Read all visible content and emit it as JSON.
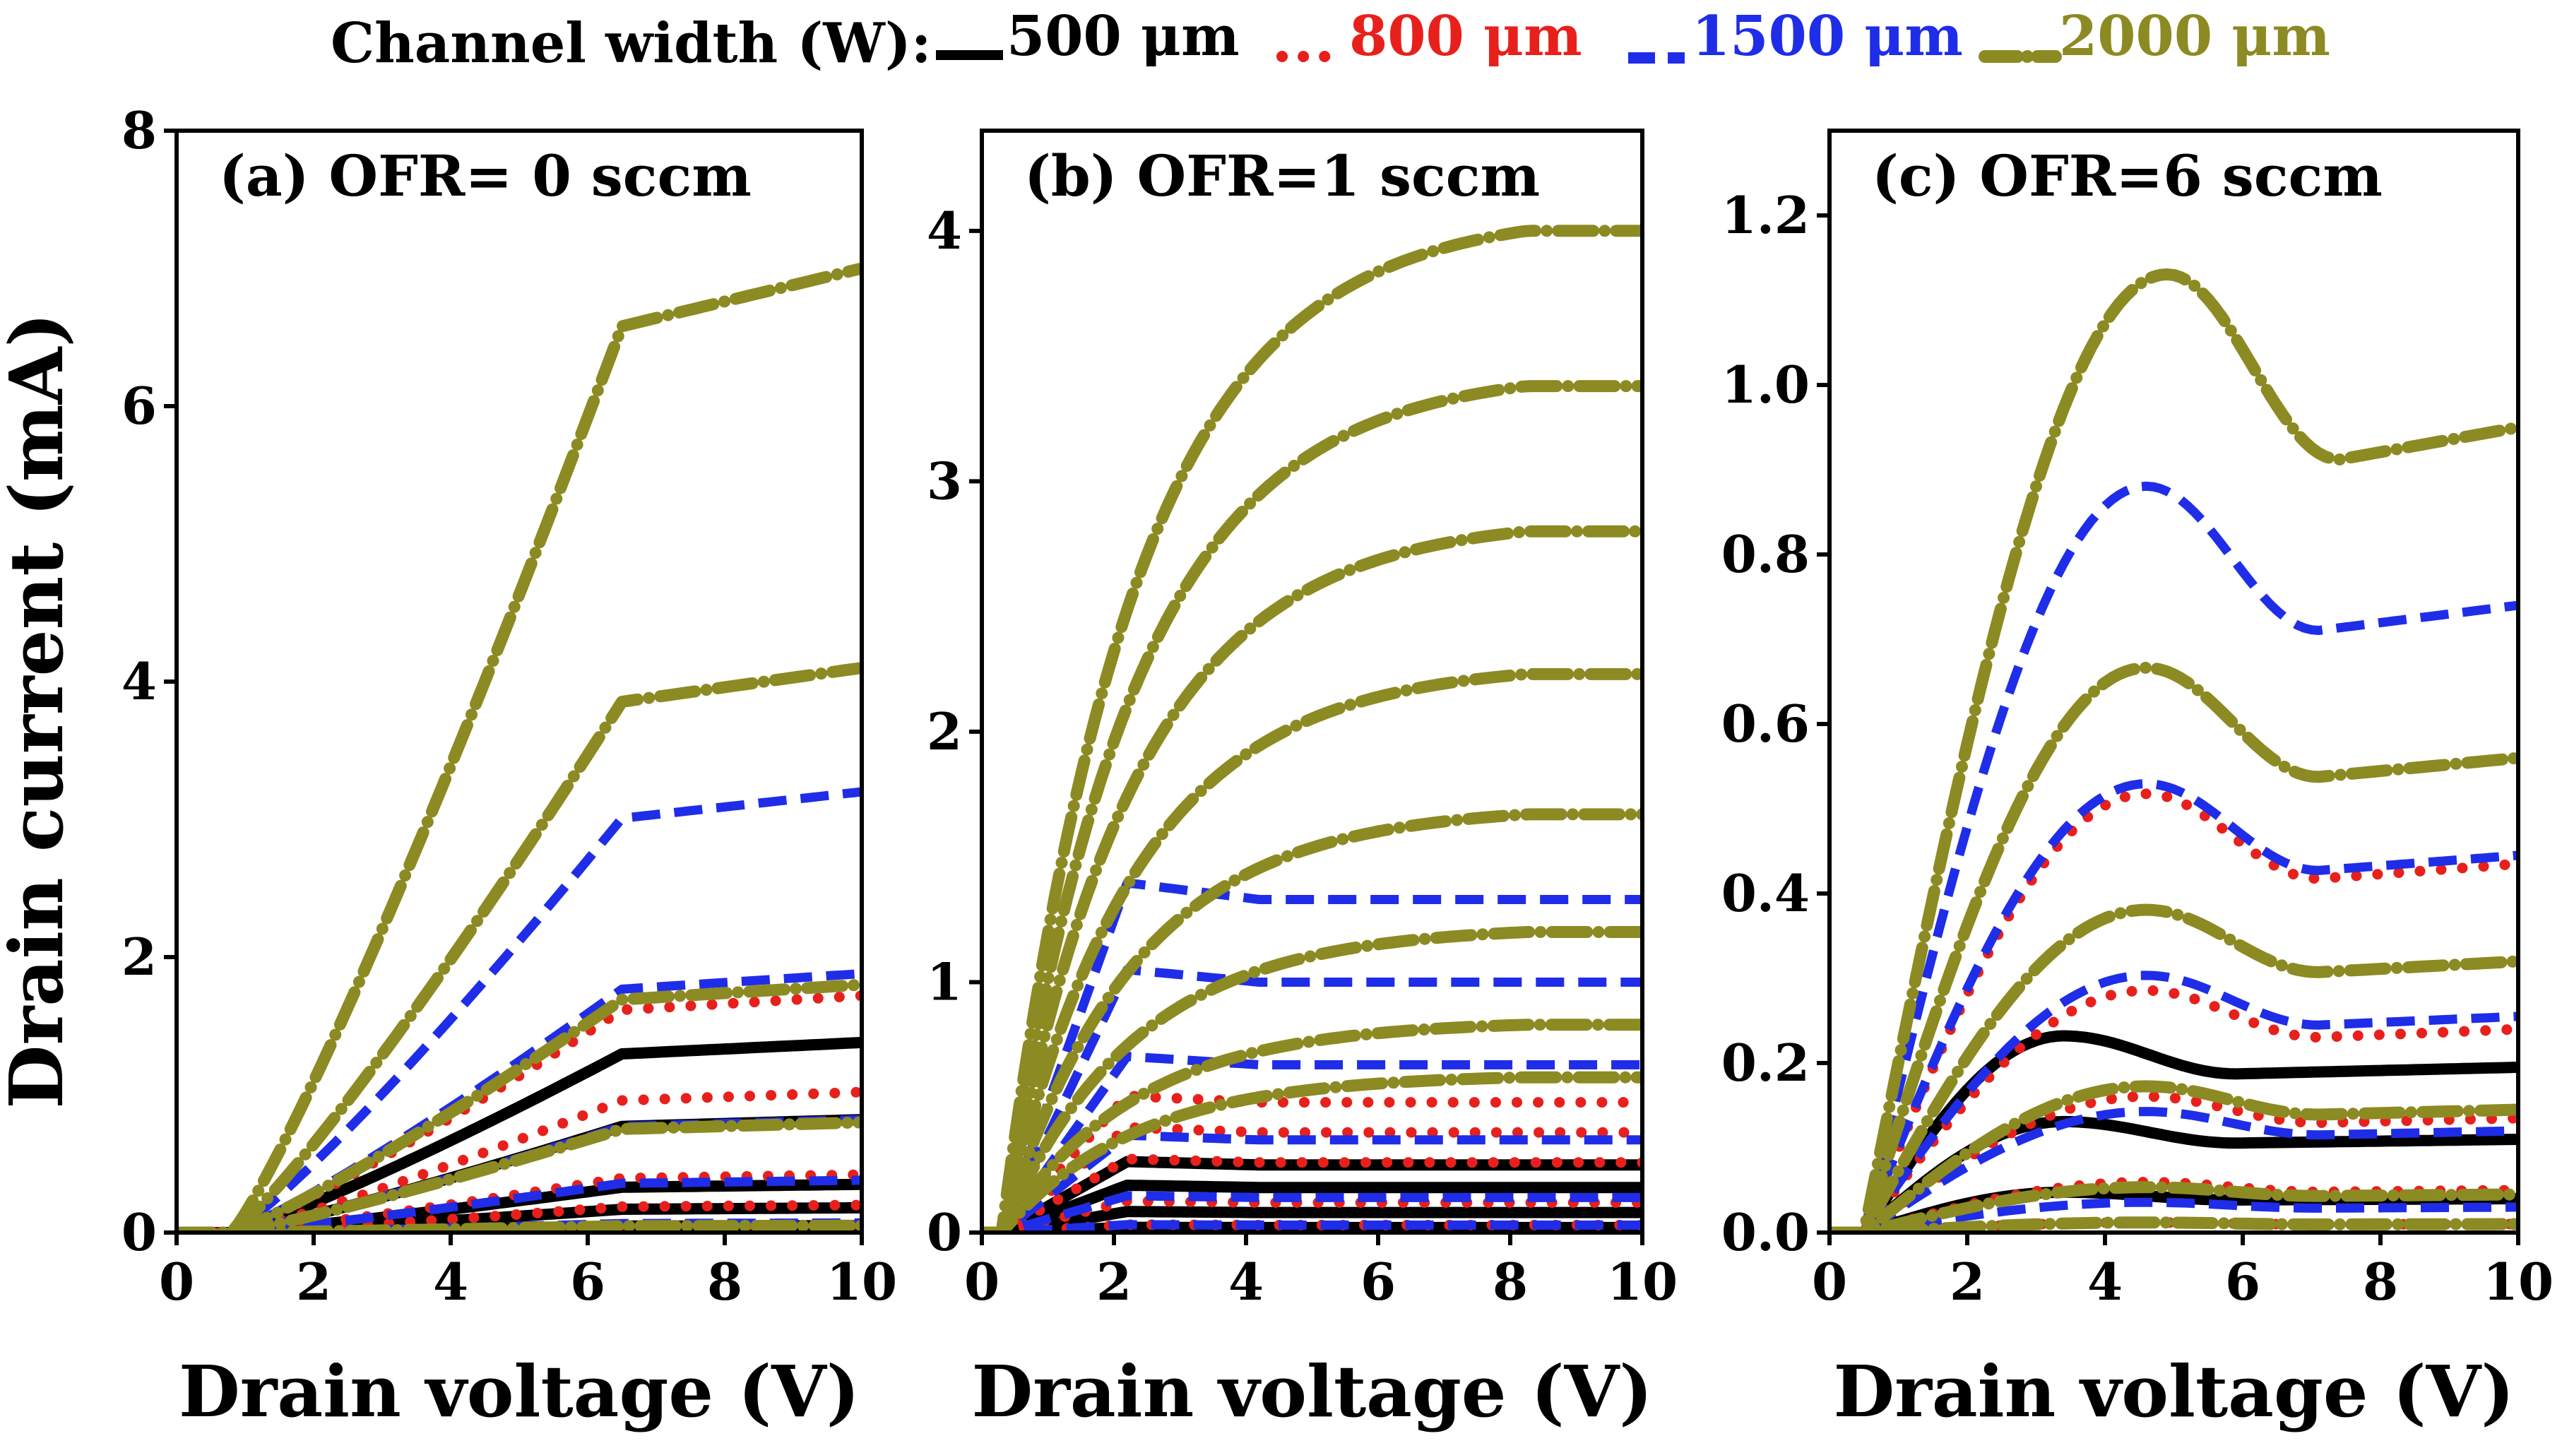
{
  "legend": {
    "title": "Channel width (W):",
    "entries": [
      {
        "label": "500 μm",
        "color": "#000000",
        "style": "solid"
      },
      {
        "label": "800 μm",
        "color": "#e8201c",
        "style": "dotted"
      },
      {
        "label": "1500 μm",
        "color": "#1f2de8",
        "style": "dashed"
      },
      {
        "label": "2000 μm",
        "color": "#8c8a22",
        "style": "dashdot"
      }
    ]
  },
  "chart_data": [
    {
      "type": "line",
      "title": "(a) OFR= 0 sccm",
      "xlabel": "Drain voltage (V)",
      "ylabel": "Drain current (mA)",
      "xlim": [
        0,
        10
      ],
      "ylim": [
        0,
        8
      ],
      "xticks": [
        0,
        2,
        4,
        6,
        8,
        10
      ],
      "yticks": [
        0,
        2,
        4,
        6,
        8
      ],
      "x": [
        0,
        0.5,
        1,
        1.5,
        2,
        2.5,
        3,
        3.5,
        4,
        4.5,
        5,
        5.5,
        6,
        6.5,
        7,
        7.5,
        8,
        8.5,
        9,
        9.5,
        10
      ],
      "series": [
        {
          "name": "500 μm",
          "style": "solid",
          "color": "#000000",
          "sat": [
            1.38,
            0.82,
            0.35,
            0.18,
            0.05
          ]
        },
        {
          "name": "800 μm",
          "style": "dotted",
          "color": "#e8201c",
          "sat": [
            1.72,
            1.02,
            0.42,
            0.2,
            0.06
          ]
        },
        {
          "name": "1500 μm",
          "style": "dashed",
          "color": "#1f2de8",
          "sat": [
            3.2,
            1.88,
            0.82,
            0.38,
            0.07
          ]
        },
        {
          "name": "2000 μm",
          "style": "dashdot",
          "color": "#8c8a22",
          "sat": [
            7.0,
            4.1,
            1.8,
            0.8,
            0.05
          ]
        }
      ]
    },
    {
      "type": "line",
      "title": "(b) OFR=1 sccm",
      "xlabel": "Drain voltage (V)",
      "ylabel": "",
      "xlim": [
        0,
        10
      ],
      "ylim": [
        0,
        4.4
      ],
      "xticks": [
        0,
        2,
        4,
        6,
        8,
        10
      ],
      "yticks": [
        0,
        1,
        2,
        3,
        4
      ],
      "x": [
        0,
        0.5,
        1,
        1.5,
        2,
        2.5,
        3,
        3.5,
        4,
        4.5,
        5,
        5.5,
        6,
        6.5,
        7,
        7.5,
        8,
        8.5,
        9,
        9.5,
        10
      ],
      "series": [
        {
          "name": "500 μm",
          "style": "solid",
          "color": "#000000",
          "sat": [
            0.27,
            0.18,
            0.08,
            0.02
          ]
        },
        {
          "name": "800 μm",
          "style": "dotted",
          "color": "#e8201c",
          "sat": [
            0.52,
            0.4,
            0.28,
            0.12,
            0.03
          ]
        },
        {
          "name": "1500 μm",
          "style": "dashed",
          "color": "#1f2de8",
          "sat": [
            1.33,
            1.0,
            0.67,
            0.37,
            0.14,
            0.03
          ]
        },
        {
          "name": "2000 μm",
          "style": "dashdot",
          "color": "#8c8a22",
          "sat": [
            4.0,
            3.38,
            2.8,
            2.23,
            1.67,
            1.2,
            0.83,
            0.62
          ]
        }
      ]
    },
    {
      "type": "line",
      "title": "(c) OFR=6 sccm",
      "xlabel": "Drain voltage (V)",
      "ylabel": "",
      "xlim": [
        0,
        10
      ],
      "ylim": [
        0,
        1.3
      ],
      "xticks": [
        0,
        2,
        4,
        6,
        8,
        10
      ],
      "yticks": [
        0.0,
        0.2,
        0.4,
        0.6,
        0.8,
        1.0,
        1.2
      ],
      "x": [
        0,
        0.5,
        1,
        1.5,
        2,
        2.5,
        3,
        3.5,
        4,
        4.5,
        5,
        5.5,
        6,
        6.5,
        7,
        7.5,
        8,
        8.5,
        9,
        9.5,
        10
      ],
      "series": [
        {
          "name": "500 μm",
          "style": "solid",
          "color": "#000000",
          "sat": [
            0.195,
            0.11,
            0.04
          ]
        },
        {
          "name": "800 μm",
          "style": "dotted",
          "color": "#e8201c",
          "sat": [
            0.435,
            0.24,
            0.135,
            0.05,
            0.01
          ]
        },
        {
          "name": "1500 μm",
          "style": "dashed",
          "color": "#1f2de8",
          "sat": [
            0.74,
            0.445,
            0.255,
            0.12,
            0.03
          ]
        },
        {
          "name": "2000 μm",
          "style": "dashdot",
          "color": "#8c8a22",
          "sat": [
            0.95,
            0.56,
            0.32,
            0.145,
            0.045,
            0.01
          ]
        }
      ]
    }
  ]
}
